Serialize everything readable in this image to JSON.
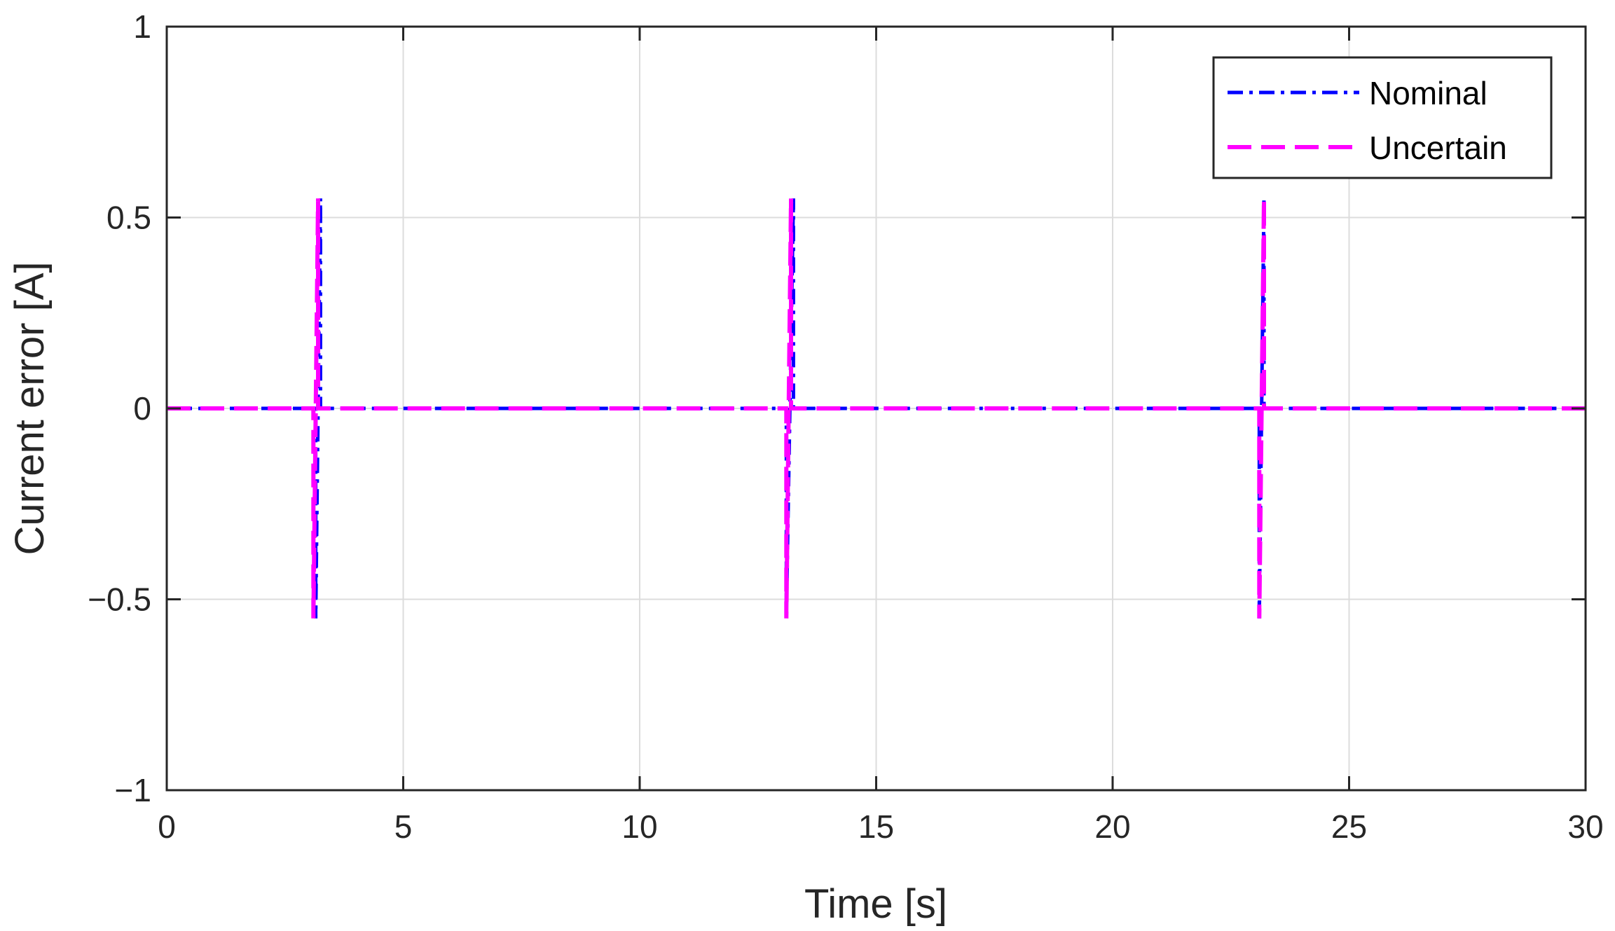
{
  "chart_data": {
    "type": "line",
    "title": "",
    "xlabel": "Time [s]",
    "ylabel": "Current error [A]",
    "xlim": [
      0,
      30
    ],
    "ylim": [
      -1,
      1
    ],
    "xticks": [
      0,
      5,
      10,
      15,
      20,
      25,
      30
    ],
    "yticks": [
      -1,
      -0.5,
      0,
      0.5,
      1
    ],
    "xtick_labels": [
      "0",
      "5",
      "10",
      "15",
      "20",
      "25",
      "30"
    ],
    "ytick_labels": [
      "−1",
      "−0.5",
      "0",
      "0.5",
      "1"
    ],
    "grid": true,
    "legend_position": "top-right",
    "series": [
      {
        "name": "Nominal",
        "color": "#0000ff",
        "line_style": "dash-dot",
        "x": [
          0,
          3.15,
          3.15,
          3.25,
          3.25,
          13.1,
          13.1,
          13.25,
          13.25,
          23.1,
          23.1,
          23.2,
          23.2,
          30
        ],
        "y": [
          0,
          0,
          -0.55,
          0.55,
          0,
          0,
          -0.55,
          0.55,
          0,
          0,
          -0.55,
          0.55,
          0,
          0
        ]
      },
      {
        "name": "Uncertain",
        "color": "#ff00ff",
        "line_style": "dashed",
        "x": [
          0,
          3.1,
          3.1,
          3.2,
          3.2,
          13.1,
          13.1,
          13.2,
          13.2,
          23.1,
          23.1,
          23.2,
          23.2,
          30
        ],
        "y": [
          0,
          0,
          -0.55,
          0.55,
          0,
          0,
          -0.55,
          0.55,
          0,
          0,
          -0.55,
          0.55,
          0,
          0
        ]
      }
    ]
  }
}
